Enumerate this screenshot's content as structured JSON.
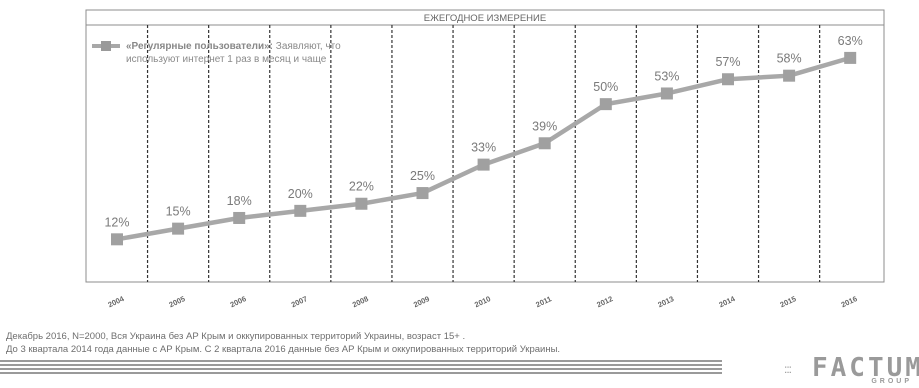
{
  "chart_data": {
    "type": "line",
    "header": "ЕЖЕГОДНОЕ ИЗМЕРЕНИЕ",
    "legend": {
      "bold": "«Регулярные пользователи»:",
      "line1": " Заявляют, что",
      "line2": "используют интернет 1 раз в месяц и чаще"
    },
    "categories": [
      "2004",
      "2005",
      "2006",
      "2007",
      "2008",
      "2009",
      "2010",
      "2011",
      "2012",
      "2013",
      "2014",
      "2015",
      "2016"
    ],
    "series": [
      {
        "values": [
          12,
          15,
          18,
          20,
          22,
          25,
          33,
          39,
          50,
          53,
          57,
          58,
          63
        ],
        "labels": [
          "12%",
          "15%",
          "18%",
          "20%",
          "22%",
          "25%",
          "33%",
          "39%",
          "50%",
          "53%",
          "57%",
          "58%",
          "63%"
        ]
      }
    ],
    "ylim": [
      0,
      70
    ],
    "line_color": "#a8a8a8",
    "grid": "dashed-vertical"
  },
  "footnotes": {
    "line1": "Декабрь 2016, N=2000, Вся Украина без АР Крым и оккупированных территорий Украины, возраст 15+ .",
    "line2": "До 3 квартала 2014 года данные с АР Крым. С 2 квартала 2016 данные без АР Крым и оккупированных территорий Украины."
  },
  "logo": {
    "word": "FACTUM",
    "sub": "GROUP",
    "dots": ":::"
  }
}
